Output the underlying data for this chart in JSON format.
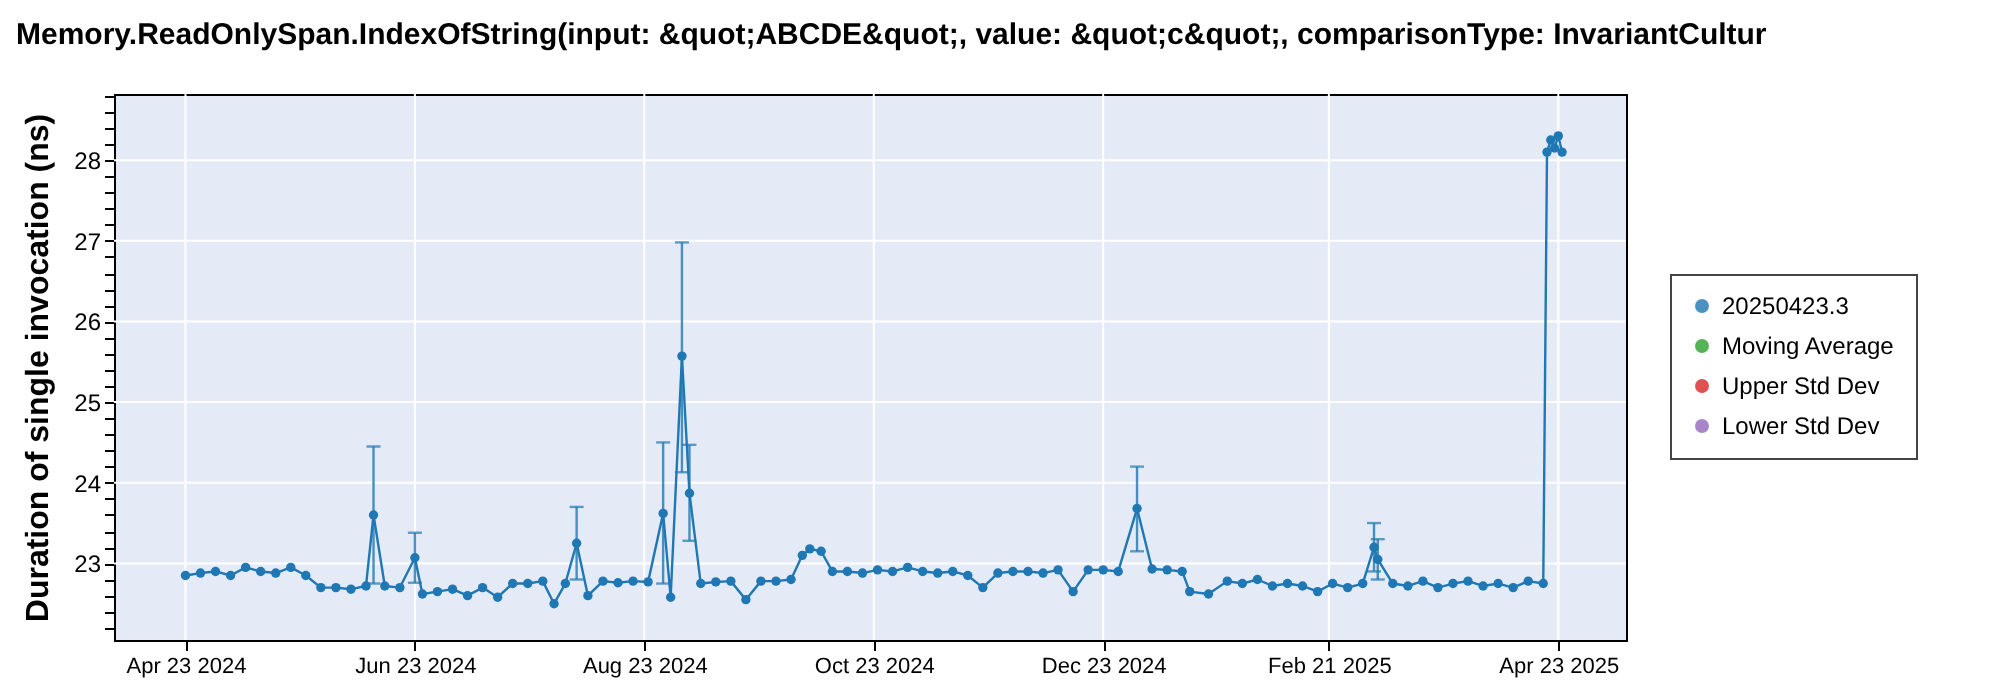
{
  "chart_data": {
    "type": "line",
    "title": "Memory.ReadOnlySpan.IndexOfString(input: &quot;ABCDE&quot;, value: &quot;c&quot;, comparisonType: InvariantCultur",
    "ylabel": "Duration of single invocation (ns)",
    "x": [
      "2024-04-23",
      "2024-04-27",
      "2024-05-01",
      "2024-05-05",
      "2024-05-09",
      "2024-05-13",
      "2024-05-17",
      "2024-05-21",
      "2024-05-25",
      "2024-05-29",
      "2024-06-02",
      "2024-06-06",
      "2024-06-10",
      "2024-06-12",
      "2024-06-15",
      "2024-06-19",
      "2024-06-23",
      "2024-06-25",
      "2024-06-29",
      "2024-07-03",
      "2024-07-07",
      "2024-07-11",
      "2024-07-15",
      "2024-07-19",
      "2024-07-23",
      "2024-07-27",
      "2024-07-30",
      "2024-08-02",
      "2024-08-05",
      "2024-08-08",
      "2024-08-12",
      "2024-08-16",
      "2024-08-20",
      "2024-08-24",
      "2024-08-28",
      "2024-08-30",
      "2024-09-02",
      "2024-09-04",
      "2024-09-07",
      "2024-09-11",
      "2024-09-15",
      "2024-09-19",
      "2024-09-23",
      "2024-09-27",
      "2024-10-01",
      "2024-10-04",
      "2024-10-06",
      "2024-10-09",
      "2024-10-12",
      "2024-10-16",
      "2024-10-20",
      "2024-10-24",
      "2024-10-28",
      "2024-11-01",
      "2024-11-05",
      "2024-11-09",
      "2024-11-13",
      "2024-11-17",
      "2024-11-21",
      "2024-11-25",
      "2024-11-29",
      "2024-12-03",
      "2024-12-07",
      "2024-12-11",
      "2024-12-15",
      "2024-12-19",
      "2024-12-23",
      "2024-12-27",
      "2025-01-01",
      "2025-01-05",
      "2025-01-09",
      "2025-01-13",
      "2025-01-15",
      "2025-01-20",
      "2025-01-25",
      "2025-01-29",
      "2025-02-02",
      "2025-02-06",
      "2025-02-10",
      "2025-02-14",
      "2025-02-18",
      "2025-02-22",
      "2025-02-26",
      "2025-03-02",
      "2025-03-05",
      "2025-03-06",
      "2025-03-10",
      "2025-03-14",
      "2025-03-18",
      "2025-03-22",
      "2025-03-26",
      "2025-03-30",
      "2025-04-03",
      "2025-04-07",
      "2025-04-11",
      "2025-04-15",
      "2025-04-19",
      "2025-04-20",
      "2025-04-21",
      "2025-04-22",
      "2025-04-23",
      "2025-04-24"
    ],
    "series": [
      {
        "name": "20250423.3",
        "color": "#1f77b4",
        "values": [
          22.85,
          22.88,
          22.9,
          22.85,
          22.95,
          22.9,
          22.88,
          22.95,
          22.85,
          22.7,
          22.7,
          22.68,
          22.72,
          23.6,
          22.72,
          22.7,
          23.07,
          22.62,
          22.65,
          22.68,
          22.6,
          22.7,
          22.58,
          22.75,
          22.75,
          22.78,
          22.5,
          22.75,
          23.25,
          22.6,
          22.78,
          22.76,
          22.78,
          22.77,
          23.62,
          22.58,
          25.57,
          23.87,
          22.75,
          22.77,
          22.78,
          22.55,
          22.78,
          22.78,
          22.8,
          23.1,
          23.18,
          23.15,
          22.9,
          22.9,
          22.88,
          22.92,
          22.9,
          22.95,
          22.9,
          22.88,
          22.9,
          22.85,
          22.7,
          22.88,
          22.9,
          22.9,
          22.88,
          22.92,
          22.65,
          22.92,
          22.92,
          22.9,
          23.68,
          22.93,
          22.92,
          22.9,
          22.65,
          22.62,
          22.78,
          22.75,
          22.8,
          22.72,
          22.75,
          22.72,
          22.65,
          22.75,
          22.7,
          22.75,
          23.2,
          23.05,
          22.75,
          22.72,
          22.78,
          22.7,
          22.75,
          22.78,
          22.72,
          22.75,
          22.7,
          22.78,
          22.75,
          28.1,
          28.25,
          28.15,
          28.3,
          28.1
        ],
        "errors": [
          null,
          null,
          null,
          null,
          null,
          null,
          null,
          null,
          null,
          null,
          null,
          null,
          null,
          [
            22.75,
            24.45
          ],
          null,
          null,
          [
            22.76,
            23.38
          ],
          null,
          null,
          null,
          null,
          null,
          null,
          null,
          null,
          null,
          null,
          null,
          [
            22.8,
            23.7
          ],
          null,
          null,
          null,
          null,
          null,
          [
            22.75,
            24.5
          ],
          null,
          [
            24.13,
            26.98
          ],
          [
            23.28,
            24.47
          ],
          null,
          null,
          null,
          null,
          null,
          null,
          null,
          null,
          null,
          null,
          null,
          null,
          null,
          null,
          null,
          null,
          null,
          null,
          null,
          null,
          null,
          null,
          null,
          null,
          null,
          null,
          null,
          null,
          null,
          null,
          [
            23.15,
            24.2
          ],
          null,
          null,
          null,
          null,
          null,
          null,
          null,
          null,
          null,
          null,
          null,
          null,
          null,
          null,
          null,
          [
            22.9,
            23.5
          ],
          [
            22.8,
            23.3
          ],
          null,
          null,
          null,
          null,
          null,
          null,
          null,
          null,
          null,
          null,
          null,
          null,
          null,
          null,
          null,
          null
        ]
      },
      {
        "name": "Moving Average",
        "color": "#2ca02c",
        "values": [
          null,
          null,
          null,
          null,
          null,
          null,
          null,
          null,
          null,
          null,
          null,
          null,
          null,
          null,
          null,
          null,
          null,
          null,
          null,
          null,
          null,
          null,
          null,
          null,
          null,
          null,
          null,
          null,
          null,
          null,
          null,
          null,
          null,
          null,
          null,
          null,
          null,
          null,
          null,
          null,
          null,
          null,
          null,
          null,
          null,
          null,
          null,
          null,
          null,
          null,
          null,
          null,
          null,
          null,
          null,
          null,
          null,
          null,
          null,
          null,
          null,
          null,
          null,
          null,
          null,
          null,
          null,
          null,
          null,
          null,
          null,
          null,
          null,
          null,
          null,
          null,
          null,
          null,
          null,
          null,
          null,
          null,
          null,
          null,
          null,
          null,
          null,
          null,
          null,
          null,
          null,
          null,
          null,
          null,
          null,
          null,
          null,
          null,
          null,
          null,
          null,
          null
        ]
      },
      {
        "name": "Upper Std Dev",
        "color": "#d62728",
        "values": [
          null,
          null,
          null,
          null,
          null,
          null,
          null,
          null,
          null,
          null,
          null,
          null,
          null,
          null,
          null,
          null,
          null,
          null,
          null,
          null,
          null,
          null,
          null,
          null,
          null,
          null,
          null,
          null,
          null,
          null,
          null,
          null,
          null,
          null,
          null,
          null,
          null,
          null,
          null,
          null,
          null,
          null,
          null,
          null,
          null,
          null,
          null,
          null,
          null,
          null,
          null,
          null,
          null,
          null,
          null,
          null,
          null,
          null,
          null,
          null,
          null,
          null,
          null,
          null,
          null,
          null,
          null,
          null,
          null,
          null,
          null,
          null,
          null,
          null,
          null,
          null,
          null,
          null,
          null,
          null,
          null,
          null,
          null,
          null,
          null,
          null,
          null,
          null,
          null,
          null,
          null,
          null,
          null,
          null,
          null,
          null,
          null,
          null,
          null,
          null,
          null,
          null
        ]
      },
      {
        "name": "Lower Std Dev",
        "color": "#9467bd",
        "values": [
          null,
          null,
          null,
          null,
          null,
          null,
          null,
          null,
          null,
          null,
          null,
          null,
          null,
          null,
          null,
          null,
          null,
          null,
          null,
          null,
          null,
          null,
          null,
          null,
          null,
          null,
          null,
          null,
          null,
          null,
          null,
          null,
          null,
          null,
          null,
          null,
          null,
          null,
          null,
          null,
          null,
          null,
          null,
          null,
          null,
          null,
          null,
          null,
          null,
          null,
          null,
          null,
          null,
          null,
          null,
          null,
          null,
          null,
          null,
          null,
          null,
          null,
          null,
          null,
          null,
          null,
          null,
          null,
          null,
          null,
          null,
          null,
          null,
          null,
          null,
          null,
          null,
          null,
          null,
          null,
          null,
          null,
          null,
          null,
          null,
          null,
          null,
          null,
          null,
          null,
          null,
          null,
          null,
          null,
          null,
          null,
          null,
          null,
          null,
          null,
          null,
          null
        ]
      }
    ],
    "xlim": [
      "2024-04-04",
      "2025-05-11"
    ],
    "xticks": [
      {
        "value": "2024-04-23",
        "label": "Apr 23 2024"
      },
      {
        "value": "2024-06-23",
        "label": "Jun 23 2024"
      },
      {
        "value": "2024-08-23",
        "label": "Aug 23 2024"
      },
      {
        "value": "2024-10-23",
        "label": "Oct 23 2024"
      },
      {
        "value": "2024-12-23",
        "label": "Dec 23 2024"
      },
      {
        "value": "2025-02-21",
        "label": "Feb 21 2025"
      },
      {
        "value": "2025-04-23",
        "label": "Apr 23 2025"
      }
    ],
    "ylim": [
      22.05,
      28.82
    ],
    "yticks": [
      {
        "value": 22.2,
        "label": null
      },
      {
        "value": 22.4,
        "label": null
      },
      {
        "value": 22.6,
        "label": null
      },
      {
        "value": 22.8,
        "label": null
      },
      23,
      {
        "value": 23.2,
        "label": null
      },
      {
        "value": 23.4,
        "label": null
      },
      {
        "value": 23.6,
        "label": null
      },
      {
        "value": 23.8,
        "label": null
      },
      24,
      {
        "value": 24.2,
        "label": null
      },
      {
        "value": 24.4,
        "label": null
      },
      {
        "value": 24.6,
        "label": null
      },
      {
        "value": 24.8,
        "label": null
      },
      25,
      {
        "value": 25.2,
        "label": null
      },
      {
        "value": 25.4,
        "label": null
      },
      {
        "value": 25.6,
        "label": null
      },
      {
        "value": 25.8,
        "label": null
      },
      26,
      {
        "value": 26.2,
        "label": null
      },
      {
        "value": 26.4,
        "label": null
      },
      {
        "value": 26.6,
        "label": null
      },
      {
        "value": 26.8,
        "label": null
      },
      27,
      {
        "value": 27.2,
        "label": null
      },
      {
        "value": 27.4,
        "label": null
      },
      {
        "value": 27.6,
        "label": null
      },
      {
        "value": 27.8,
        "label": null
      },
      28,
      {
        "value": 28.2,
        "label": null
      },
      {
        "value": 28.4,
        "label": null
      },
      {
        "value": 28.6,
        "label": null
      },
      {
        "value": 28.8,
        "label": null
      }
    ],
    "grid": true,
    "legend": "right",
    "marker": "circle",
    "line_style": "solid"
  }
}
